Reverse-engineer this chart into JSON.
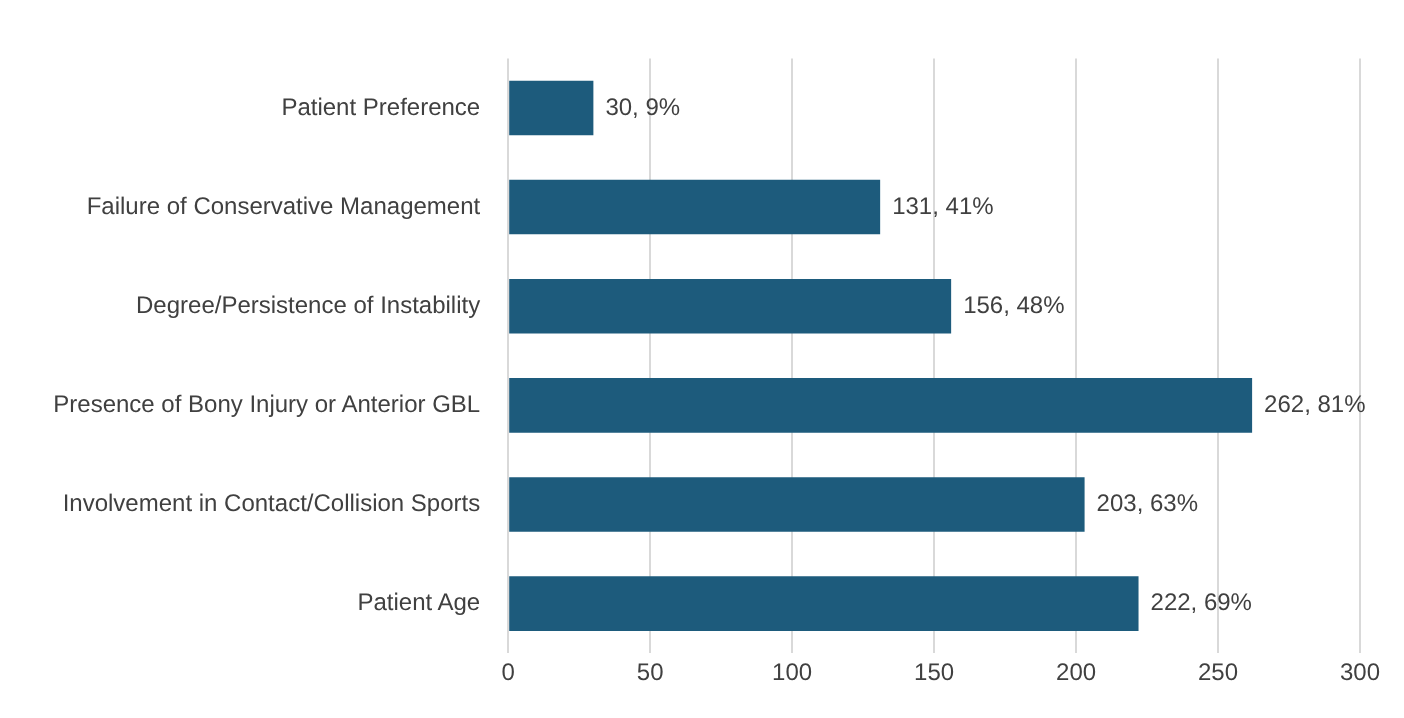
{
  "chart_data": {
    "type": "bar",
    "orientation": "horizontal",
    "categories": [
      "Patient Preference",
      "Failure of Conservative Management",
      "Degree/Persistence of Instability",
      "Presence of Bony Injury or Anterior GBL",
      "Involvement in Contact/Collision Sports",
      "Patient Age"
    ],
    "values": [
      30,
      131,
      156,
      262,
      203,
      222
    ],
    "value_labels": [
      "30, 9%",
      "131, 41%",
      "156, 48%",
      "262, 81%",
      "203, 63%",
      "222, 69%"
    ],
    "color": "#1d5b7c",
    "xlim": [
      0,
      300
    ],
    "xticks": [
      0,
      50,
      100,
      150,
      200,
      250,
      300
    ],
    "grid": "x",
    "legend": false
  }
}
